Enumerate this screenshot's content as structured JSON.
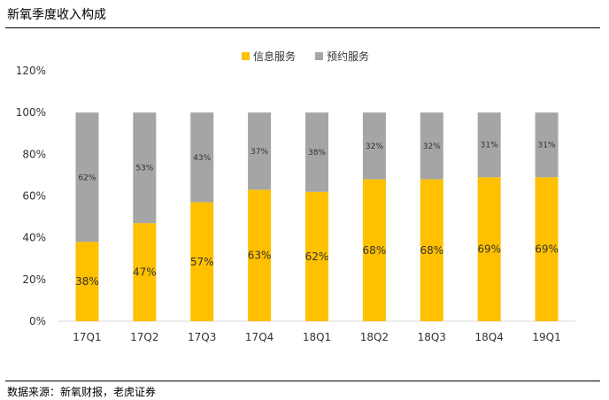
{
  "page": {
    "title": "新氧季度收入构成",
    "source": "数据来源：新氧财报，老虎证券"
  },
  "chart_data": {
    "type": "bar",
    "stacked": true,
    "categories": [
      "17Q1",
      "17Q2",
      "17Q3",
      "17Q4",
      "18Q1",
      "18Q2",
      "18Q3",
      "18Q4",
      "19Q1"
    ],
    "series": [
      {
        "name": "信息服务",
        "color": "#FFC000",
        "values": [
          38,
          47,
          57,
          63,
          62,
          68,
          68,
          69,
          69
        ],
        "labels": [
          "38%",
          "47%",
          "57%",
          "63%",
          "62%",
          "68%",
          "68%",
          "69%",
          "69%"
        ]
      },
      {
        "name": "预约服务",
        "color": "#A5A5A5",
        "values": [
          62,
          53,
          43,
          37,
          38,
          32,
          32,
          31,
          31
        ],
        "labels": [
          "62%",
          "53%",
          "43%",
          "37%",
          "38%",
          "32%",
          "32%",
          "31%",
          "31%"
        ]
      }
    ],
    "yticks": [
      "0%",
      "20%",
      "40%",
      "60%",
      "80%",
      "100%",
      "120%"
    ],
    "ylim": [
      0,
      120
    ],
    "legend": "top-center",
    "grid": false
  }
}
